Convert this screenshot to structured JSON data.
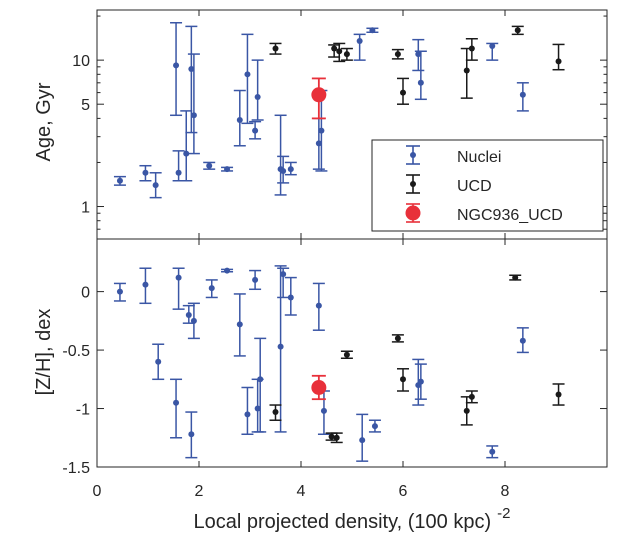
{
  "chart_data": [
    {
      "type": "scatter",
      "panel": "top",
      "title": "",
      "xlabel": "",
      "ylabel": "Age, Gyr",
      "xlim": [
        0,
        10
      ],
      "ylim": [
        0.6,
        22
      ],
      "y_scale": "log",
      "x_ticks": [
        0,
        2,
        4,
        6,
        8
      ],
      "y_ticks": [
        1,
        5,
        10
      ],
      "y_tick_labels": [
        "1",
        "5",
        "10"
      ],
      "grid": false,
      "legend": {
        "placement": "lower-right",
        "entries": [
          {
            "label": "Nuclei",
            "color": "#3a56a5",
            "marker": "small"
          },
          {
            "label": "UCD",
            "color": "#1a1a1a",
            "marker": "small"
          },
          {
            "label": "NGC936_UCD",
            "color": "#e8303a",
            "marker": "large"
          }
        ]
      },
      "series": [
        {
          "name": "Nuclei",
          "color": "#3a56a5",
          "points": [
            {
              "x": 0.45,
              "y": 1.5,
              "lo": 1.4,
              "hi": 1.6
            },
            {
              "x": 0.95,
              "y": 1.7,
              "lo": 1.5,
              "hi": 1.9
            },
            {
              "x": 1.15,
              "y": 1.4,
              "lo": 1.15,
              "hi": 1.7
            },
            {
              "x": 1.55,
              "y": 9.2,
              "lo": 4.2,
              "hi": 18
            },
            {
              "x": 1.6,
              "y": 1.7,
              "lo": 1.5,
              "hi": 2.4
            },
            {
              "x": 1.75,
              "y": 2.3,
              "lo": 1.5,
              "hi": 4.5
            },
            {
              "x": 1.85,
              "y": 8.7,
              "lo": 3.2,
              "hi": 17
            },
            {
              "x": 1.9,
              "y": 4.2,
              "lo": 2.3,
              "hi": 11
            },
            {
              "x": 2.2,
              "y": 1.9,
              "lo": 1.8,
              "hi": 2.0
            },
            {
              "x": 2.55,
              "y": 1.8,
              "lo": 1.75,
              "hi": 1.85
            },
            {
              "x": 2.8,
              "y": 3.9,
              "lo": 2.6,
              "hi": 6.2
            },
            {
              "x": 2.95,
              "y": 8.0,
              "lo": 3.7,
              "hi": 15
            },
            {
              "x": 3.1,
              "y": 3.3,
              "lo": 2.9,
              "hi": 3.8
            },
            {
              "x": 3.15,
              "y": 5.6,
              "lo": 3.9,
              "hi": 10
            },
            {
              "x": 3.6,
              "y": 1.8,
              "lo": 1.2,
              "hi": 4.2
            },
            {
              "x": 3.65,
              "y": 1.75,
              "lo": 1.45,
              "hi": 2.2
            },
            {
              "x": 3.8,
              "y": 1.8,
              "lo": 1.65,
              "hi": 2.0
            },
            {
              "x": 4.35,
              "y": 2.7,
              "lo": 1.8,
              "hi": 4.0
            },
            {
              "x": 4.4,
              "y": 3.3,
              "lo": 1.75,
              "hi": 6.2
            },
            {
              "x": 5.15,
              "y": 13.5,
              "lo": 10,
              "hi": 15
            },
            {
              "x": 5.4,
              "y": 16,
              "lo": 15.5,
              "hi": 16.5
            },
            {
              "x": 6.3,
              "y": 11,
              "lo": 8.5,
              "hi": 13.8
            },
            {
              "x": 6.35,
              "y": 7.0,
              "lo": 5.4,
              "hi": 11.5
            },
            {
              "x": 7.75,
              "y": 12.5,
              "lo": 10,
              "hi": 13
            },
            {
              "x": 8.35,
              "y": 5.8,
              "lo": 4.5,
              "hi": 7.0
            }
          ]
        },
        {
          "name": "UCD",
          "color": "#1a1a1a",
          "points": [
            {
              "x": 3.5,
              "y": 12,
              "lo": 11,
              "hi": 13
            },
            {
              "x": 4.65,
              "y": 12,
              "lo": 10.5,
              "hi": 12.7
            },
            {
              "x": 4.75,
              "y": 11.5,
              "lo": 9.8,
              "hi": 13
            },
            {
              "x": 4.9,
              "y": 11,
              "lo": 10,
              "hi": 12
            },
            {
              "x": 5.9,
              "y": 11,
              "lo": 10.2,
              "hi": 11.8
            },
            {
              "x": 6.0,
              "y": 6.0,
              "lo": 5.0,
              "hi": 7.5
            },
            {
              "x": 7.25,
              "y": 8.5,
              "lo": 5.5,
              "hi": 12
            },
            {
              "x": 7.35,
              "y": 12,
              "lo": 10,
              "hi": 14
            },
            {
              "x": 8.25,
              "y": 16,
              "lo": 15,
              "hi": 17
            },
            {
              "x": 9.05,
              "y": 9.8,
              "lo": 8.6,
              "hi": 12.8
            }
          ]
        },
        {
          "name": "NGC936_UCD",
          "color": "#e8303a",
          "points": [
            {
              "x": 4.35,
              "y": 5.8,
              "lo": 4.0,
              "hi": 7.5
            }
          ]
        }
      ]
    },
    {
      "type": "scatter",
      "panel": "bottom",
      "title": "",
      "xlabel": "Local projected density, (100 kpc)",
      "xlabel_exponent": "-2",
      "ylabel": "[Z/H], dex",
      "xlim": [
        0,
        10
      ],
      "ylim": [
        -1.5,
        0.45
      ],
      "x_ticks": [
        0,
        2,
        4,
        6,
        8
      ],
      "x_tick_labels": [
        "0",
        "2",
        "4",
        "6",
        "8"
      ],
      "y_ticks": [
        0,
        -0.5,
        -1,
        -1.5
      ],
      "y_tick_labels": [
        "0",
        "-0.5",
        "-1",
        "-1.5"
      ],
      "grid": false,
      "series": [
        {
          "name": "Nuclei",
          "color": "#3a56a5",
          "points": [
            {
              "x": 0.45,
              "y": 0.0,
              "lo": -0.08,
              "hi": 0.07
            },
            {
              "x": 0.95,
              "y": 0.06,
              "lo": -0.1,
              "hi": 0.2
            },
            {
              "x": 1.2,
              "y": -0.6,
              "lo": -0.75,
              "hi": -0.45
            },
            {
              "x": 1.55,
              "y": -0.95,
              "lo": -1.25,
              "hi": -0.75
            },
            {
              "x": 1.6,
              "y": 0.12,
              "lo": -0.15,
              "hi": 0.2
            },
            {
              "x": 1.8,
              "y": -0.2,
              "lo": -0.27,
              "hi": -0.12
            },
            {
              "x": 1.85,
              "y": -1.22,
              "lo": -1.42,
              "hi": -1.03
            },
            {
              "x": 1.9,
              "y": -0.25,
              "lo": -0.4,
              "hi": -0.1
            },
            {
              "x": 2.25,
              "y": 0.03,
              "lo": -0.05,
              "hi": 0.1
            },
            {
              "x": 2.55,
              "y": 0.18,
              "lo": 0.17,
              "hi": 0.19
            },
            {
              "x": 2.8,
              "y": -0.28,
              "lo": -0.55,
              "hi": -0.02
            },
            {
              "x": 2.95,
              "y": -1.05,
              "lo": -1.22,
              "hi": -0.82
            },
            {
              "x": 3.1,
              "y": 0.1,
              "lo": 0.02,
              "hi": 0.18
            },
            {
              "x": 3.15,
              "y": -1.0,
              "lo": -1.2,
              "hi": -0.75
            },
            {
              "x": 3.2,
              "y": -0.75,
              "lo": -1.2,
              "hi": -0.4
            },
            {
              "x": 3.6,
              "y": -0.47,
              "lo": -1.2,
              "hi": 0.22
            },
            {
              "x": 3.65,
              "y": 0.15,
              "lo": -0.05,
              "hi": 0.2
            },
            {
              "x": 3.8,
              "y": -0.05,
              "lo": -0.2,
              "hi": 0.12
            },
            {
              "x": 4.35,
              "y": -0.12,
              "lo": -0.33,
              "hi": 0.07
            },
            {
              "x": 4.45,
              "y": -1.02,
              "lo": -1.22,
              "hi": -0.85
            },
            {
              "x": 5.2,
              "y": -1.27,
              "lo": -1.45,
              "hi": -1.05
            },
            {
              "x": 5.45,
              "y": -1.15,
              "lo": -1.2,
              "hi": -1.1
            },
            {
              "x": 6.3,
              "y": -0.8,
              "lo": -0.97,
              "hi": -0.58
            },
            {
              "x": 6.35,
              "y": -0.77,
              "lo": -0.92,
              "hi": -0.62
            },
            {
              "x": 7.75,
              "y": -1.37,
              "lo": -1.42,
              "hi": -1.32
            },
            {
              "x": 8.35,
              "y": -0.42,
              "lo": -0.52,
              "hi": -0.31
            }
          ]
        },
        {
          "name": "UCD",
          "color": "#1a1a1a",
          "points": [
            {
              "x": 3.5,
              "y": -1.03,
              "lo": -1.1,
              "hi": -0.97
            },
            {
              "x": 4.6,
              "y": -1.24,
              "lo": -1.27,
              "hi": -1.21
            },
            {
              "x": 4.7,
              "y": -1.25,
              "lo": -1.29,
              "hi": -1.21
            },
            {
              "x": 4.9,
              "y": -0.54,
              "lo": -0.57,
              "hi": -0.51
            },
            {
              "x": 5.9,
              "y": -0.4,
              "lo": -0.43,
              "hi": -0.37
            },
            {
              "x": 6.0,
              "y": -0.75,
              "lo": -0.85,
              "hi": -0.66
            },
            {
              "x": 7.25,
              "y": -1.02,
              "lo": -1.14,
              "hi": -0.9
            },
            {
              "x": 7.35,
              "y": -0.9,
              "lo": -0.95,
              "hi": -0.85
            },
            {
              "x": 8.2,
              "y": 0.12,
              "lo": 0.1,
              "hi": 0.14
            },
            {
              "x": 9.05,
              "y": -0.88,
              "lo": -0.97,
              "hi": -0.79
            }
          ]
        },
        {
          "name": "NGC936_UCD",
          "color": "#e8303a",
          "points": [
            {
              "x": 4.35,
              "y": -0.82,
              "lo": -0.92,
              "hi": -0.72
            }
          ]
        }
      ]
    }
  ]
}
